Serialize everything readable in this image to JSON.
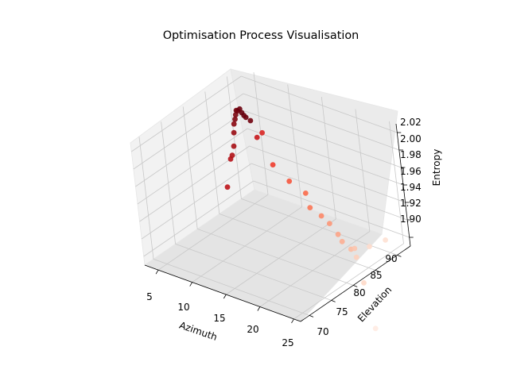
{
  "chart_data": {
    "type": "scatter",
    "projection": "3d",
    "title": "Optimisation Process Visualisation",
    "xlabel": "Azimuth",
    "ylabel": "Elevation",
    "zlabel": "Entropy",
    "xlim": [
      3,
      26
    ],
    "ylim": [
      68,
      93
    ],
    "zlim": [
      1.89,
      2.03
    ],
    "x_ticks": [
      "5",
      "10",
      "15",
      "20",
      "25"
    ],
    "y_ticks": [
      "70",
      "75",
      "80",
      "85",
      "90"
    ],
    "z_ticks": [
      "1.90",
      "1.92",
      "1.94",
      "1.96",
      "1.98",
      "2.00",
      "2.02"
    ],
    "grid": true,
    "colormap": "Reds",
    "color_encoding": "point order (later points lighter)",
    "points": [
      {
        "x": 4.0,
        "y": 86.0,
        "z": 1.92,
        "c": 0.8
      },
      {
        "x": 5.0,
        "y": 86.0,
        "z": 1.955,
        "c": 0.82
      },
      {
        "x": 5.3,
        "y": 86.0,
        "z": 1.96,
        "c": 0.84
      },
      {
        "x": 5.5,
        "y": 86.3,
        "z": 1.97,
        "c": 0.87
      },
      {
        "x": 5.6,
        "y": 86.5,
        "z": 1.985,
        "c": 0.9
      },
      {
        "x": 5.7,
        "y": 86.6,
        "z": 1.995,
        "c": 0.93
      },
      {
        "x": 5.8,
        "y": 86.8,
        "z": 2.0,
        "c": 0.95
      },
      {
        "x": 5.9,
        "y": 86.9,
        "z": 2.005,
        "c": 0.96
      },
      {
        "x": 6.0,
        "y": 87.0,
        "z": 2.01,
        "c": 0.97
      },
      {
        "x": 6.2,
        "y": 87.0,
        "z": 2.01,
        "c": 0.98
      },
      {
        "x": 6.4,
        "y": 87.2,
        "z": 2.012,
        "c": 0.99
      },
      {
        "x": 6.6,
        "y": 87.3,
        "z": 2.008,
        "c": 1.0
      },
      {
        "x": 6.8,
        "y": 87.4,
        "z": 2.005,
        "c": 1.0
      },
      {
        "x": 7.0,
        "y": 87.5,
        "z": 2.003,
        "c": 0.99
      },
      {
        "x": 7.5,
        "y": 87.7,
        "z": 2.0,
        "c": 0.98
      },
      {
        "x": 8.5,
        "y": 87.3,
        "z": 1.985,
        "c": 0.76
      },
      {
        "x": 9.0,
        "y": 87.8,
        "z": 1.99,
        "c": 0.7
      },
      {
        "x": 10.3,
        "y": 87.5,
        "z": 1.958,
        "c": 0.62
      },
      {
        "x": 12.6,
        "y": 87.4,
        "z": 1.946,
        "c": 0.55
      },
      {
        "x": 15.2,
        "y": 87.0,
        "z": 1.941,
        "c": 0.5
      },
      {
        "x": 16.2,
        "y": 86.2,
        "z": 1.93,
        "c": 0.46
      },
      {
        "x": 17.8,
        "y": 86.2,
        "z": 1.925,
        "c": 0.41
      },
      {
        "x": 19.0,
        "y": 86.1,
        "z": 1.92,
        "c": 0.36
      },
      {
        "x": 19.9,
        "y": 86.4,
        "z": 1.909,
        "c": 0.32
      },
      {
        "x": 20.1,
        "y": 86.8,
        "z": 1.9,
        "c": 0.29
      },
      {
        "x": 21.1,
        "y": 87.1,
        "z": 1.893,
        "c": 0.25
      },
      {
        "x": 21.6,
        "y": 87.2,
        "z": 1.895,
        "c": 0.22
      },
      {
        "x": 22.1,
        "y": 86.7,
        "z": 1.888,
        "c": 0.18
      },
      {
        "x": 22.9,
        "y": 88.6,
        "z": 1.896,
        "c": 0.14
      },
      {
        "x": 23.8,
        "y": 90.9,
        "z": 1.898,
        "c": 0.12
      },
      {
        "x": 22.7,
        "y": 86.8,
        "z": 1.86,
        "c": 0.15
      },
      {
        "x": 23.6,
        "y": 86.9,
        "z": 1.81,
        "c": 0.06
      }
    ]
  }
}
